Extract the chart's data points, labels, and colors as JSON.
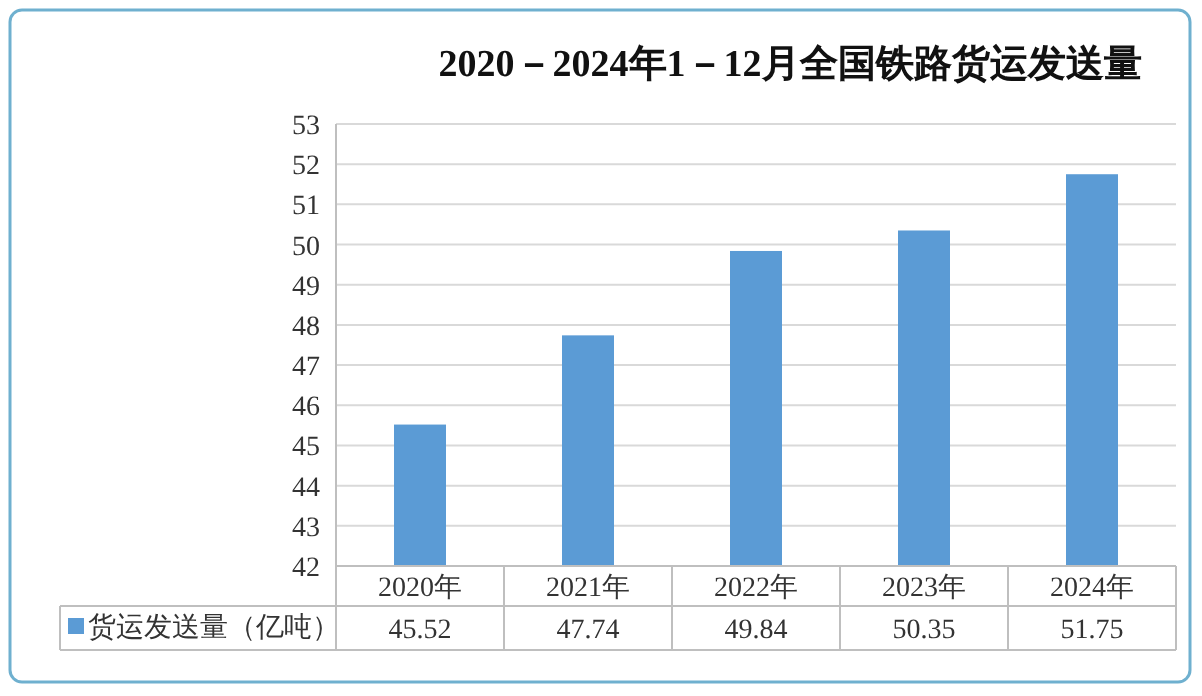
{
  "chart_data": {
    "type": "bar",
    "title": "2020－2024年1－12月全国铁路货运发送量",
    "categories": [
      "2020年",
      "2021年",
      "2022年",
      "2023年",
      "2024年"
    ],
    "series": [
      {
        "name": "货运发送量（亿吨）",
        "color": "#5b9bd5",
        "values": [
          45.52,
          47.74,
          49.84,
          50.35,
          51.75
        ]
      }
    ],
    "ylim": [
      42,
      53
    ],
    "yticks": [
      42,
      43,
      44,
      45,
      46,
      47,
      48,
      49,
      50,
      51,
      52,
      53
    ],
    "grid": "y",
    "legend": "bottom left",
    "data_labels": true
  }
}
